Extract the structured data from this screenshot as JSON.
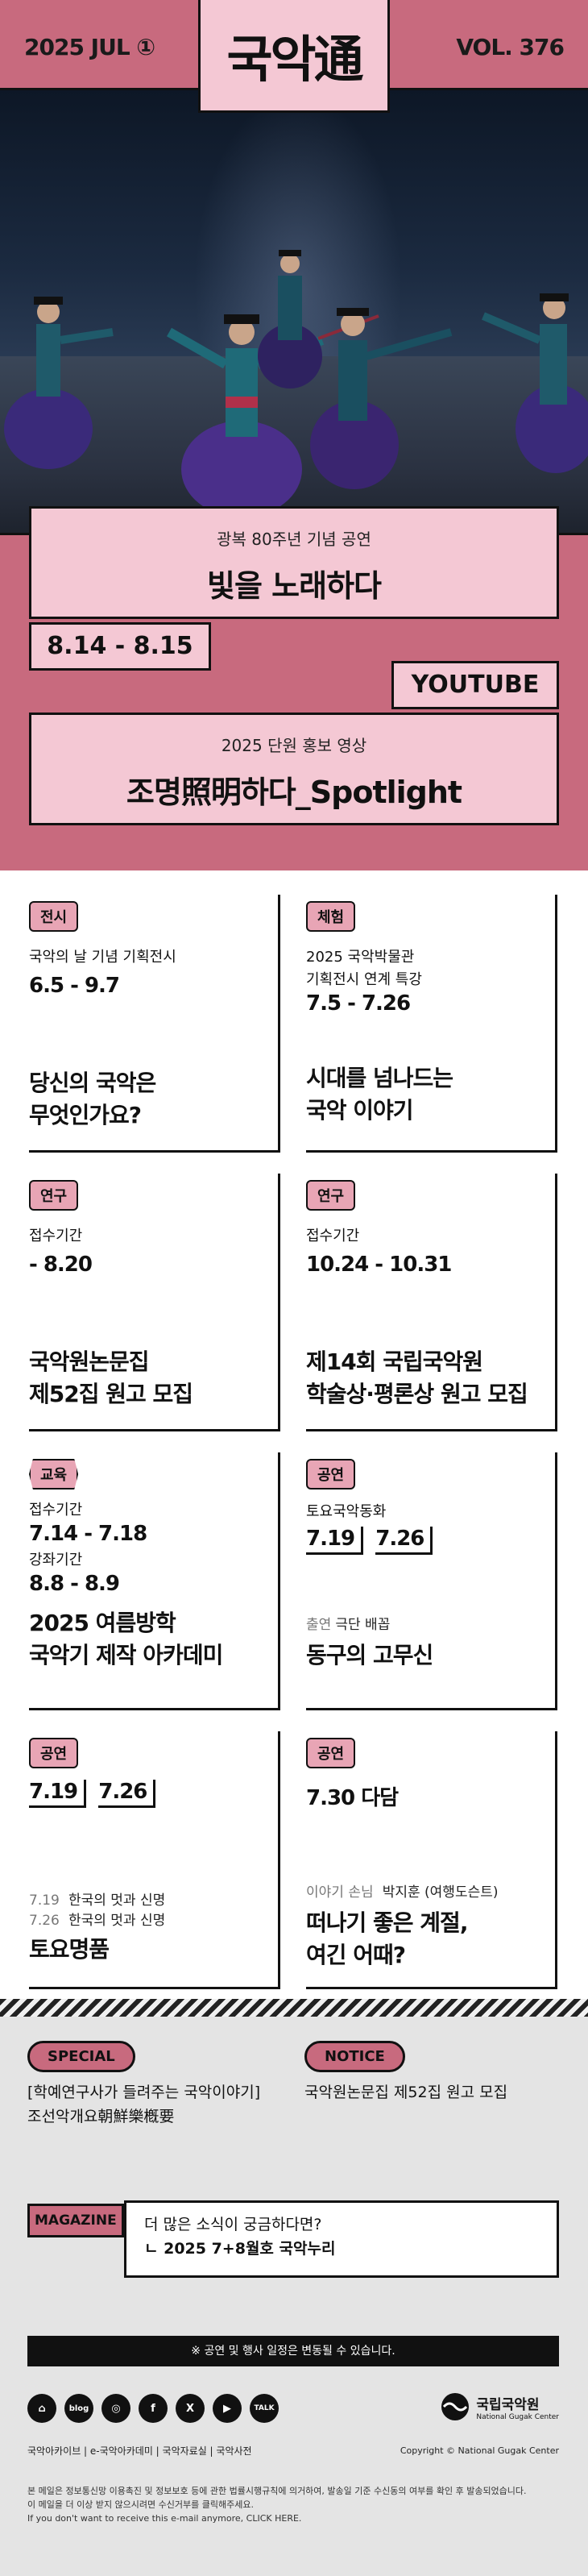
{
  "masthead": {
    "issue_date": "2025 JUL ①",
    "logo": "국악通",
    "volume": "VOL. 376"
  },
  "hero": {
    "event_subtitle": "광복 80주년 기념 공연",
    "event_title": "빛을 노래하다",
    "event_dates": "8.14 - 8.15",
    "youtube_label": "YOUTUBE",
    "video_subtitle": "2025 단원 홍보 영상",
    "video_title": "조명照明하다_Spotlight"
  },
  "cards": [
    {
      "badge": "전시",
      "sub": "국악의 날 기념 기획전시",
      "date": "6.5 - 9.7",
      "title_1": "당신의 국악은",
      "title_2": "무엇인가요?"
    },
    {
      "badge": "체험",
      "sub_1": "2025 국악박물관",
      "sub_2": "기획전시 연계 특강",
      "date": "7.5 - 7.26",
      "title_1": "시대를 넘나드는",
      "title_2": "국악 이야기"
    },
    {
      "badge": "연구",
      "sub": "접수기간",
      "date": "- 8.20",
      "title_1": "국악원논문집",
      "title_2": "제52집 원고 모집"
    },
    {
      "badge": "연구",
      "sub": "접수기간",
      "date": "10.24 - 10.31",
      "title_1": "제14회 국립국악원",
      "title_2": "학술상·평론상 원고 모집"
    },
    {
      "badge": "교육",
      "sub_1": "접수기간",
      "date_1": "7.14 - 7.18",
      "sub_2": "강좌기간",
      "date_2": "8.8 - 8.9",
      "title_1": "2025 여름방학",
      "title_2": "국악기 제작 아카데미"
    },
    {
      "badge": "공연",
      "sub": "토요국악동화",
      "date_a": "7.19",
      "date_b": "7.26",
      "cast_label": "출연",
      "cast": "극단 배꼽",
      "title": "동구의 고무신"
    },
    {
      "badge": "공연",
      "date_a": "7.19",
      "date_b": "7.26",
      "line1_date": "7.19",
      "line1_text": "한국의 멋과 신명",
      "line2_date": "7.26",
      "line2_text": "한국의 멋과 신명",
      "title": "토요명품"
    },
    {
      "badge": "공연",
      "date": "7.30 다담",
      "guest_label": "이야기 손님",
      "guest": "박지훈 (여행도슨트)",
      "title_1": "떠나기 좋은 계절,",
      "title_2": "여긴 어때?"
    }
  ],
  "bottom": {
    "special_label": "SPECIAL",
    "special_text_1": "[학예연구사가 들려주는 국악이야기]",
    "special_text_2": "조선악개요朝鮮樂槪要",
    "notice_label": "NOTICE",
    "notice_text": "국악원논문집 제52집 원고 모집",
    "magazine_label": "MAGAZINE",
    "magazine_line_1": "더 많은 소식이 궁금하다면?",
    "magazine_line_2": "ㄴ 2025 7+8월호 국악누리",
    "notice_bar": "※ 공연 및 행사 일정은 변동될 수 있습니다.",
    "sns": [
      "⌂",
      "blog",
      "◎",
      "f",
      "X",
      "▶",
      "TALK"
    ],
    "links": "국악아카이브  |  e-국악아카데미  |  국악자료실  |  국악사전",
    "org_name": "국립국악원",
    "org_name_en": "National Gugak Center",
    "copyright": "Copyright © National Gugak Center",
    "footnote_1": "본 메일은 정보통신망 이용촉진 및 정보보호 등에 관한 법률시행규칙에 의거하여, 발송일 기준 수신동의 여부를 확인 후 발송되었습니다.",
    "footnote_2": "이 메일을 더 이상 받지 않으시려면 수신거부를 클릭해주세요.",
    "footnote_3": "If you don't want to receive this e-mail anymore, CLICK HERE."
  },
  "colors": {
    "accent": "#c86a7e",
    "pink_light": "#f4c8d4",
    "badge_pink": "#e8a5b5",
    "bottom_bg": "#e4e4e4"
  }
}
